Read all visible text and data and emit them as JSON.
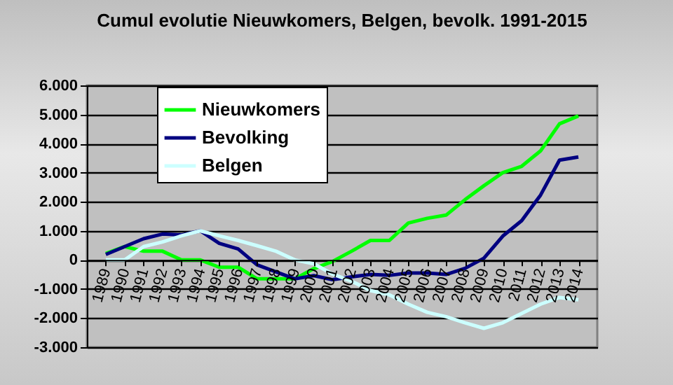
{
  "chart_data": {
    "type": "line",
    "title": "Cumul evolutie Nieuwkomers, Belgen, bevolk. 1991-2015",
    "categories": [
      "1989",
      "1990",
      "1991",
      "1992",
      "1993",
      "1994",
      "1995",
      "1996",
      "1997",
      "1998",
      "1999",
      "2000",
      "2001",
      "2002",
      "2003",
      "2004",
      "2005",
      "2006",
      "2007",
      "2008",
      "2009",
      "2010",
      "2011",
      "2012",
      "2013",
      "2014"
    ],
    "series": [
      {
        "name": "Nieuwkomers",
        "color": "#00ff00",
        "values": [
          220,
          460,
          300,
          300,
          0,
          0,
          -250,
          -250,
          -650,
          -650,
          -650,
          -300,
          -50,
          300,
          670,
          670,
          1270,
          1430,
          1540,
          2070,
          2550,
          3000,
          3220,
          3750,
          4680,
          4950
        ]
      },
      {
        "name": "Bevolking",
        "color": "#000080",
        "values": [
          190,
          460,
          730,
          890,
          860,
          1000,
          570,
          380,
          -170,
          -410,
          -650,
          -540,
          -680,
          -580,
          -500,
          -530,
          -450,
          -450,
          -500,
          -290,
          60,
          820,
          1350,
          2230,
          3430,
          3540
        ]
      },
      {
        "name": "Belgen",
        "color": "#ccffff",
        "values": [
          0,
          0,
          460,
          620,
          830,
          1000,
          830,
          670,
          490,
          300,
          0,
          -130,
          -490,
          -730,
          -1050,
          -1200,
          -1520,
          -1800,
          -1950,
          -2160,
          -2350,
          -2160,
          -1840,
          -1520,
          -1290,
          -1370
        ]
      }
    ],
    "ylim": [
      -3000,
      6000
    ],
    "yticks": [
      {
        "value": -3000,
        "label": "-3.000"
      },
      {
        "value": -2000,
        "label": "-2.000"
      },
      {
        "value": -1000,
        "label": "-1.000"
      },
      {
        "value": 0,
        "label": "0"
      },
      {
        "value": 1000,
        "label": "1.000"
      },
      {
        "value": 2000,
        "label": "2.000"
      },
      {
        "value": 3000,
        "label": "3.000"
      },
      {
        "value": 4000,
        "label": "4.000"
      },
      {
        "value": 5000,
        "label": "5.000"
      },
      {
        "value": 6000,
        "label": "6.000"
      }
    ],
    "grid": "y",
    "legend": "top left",
    "marker": "none",
    "line_style": "solid"
  }
}
